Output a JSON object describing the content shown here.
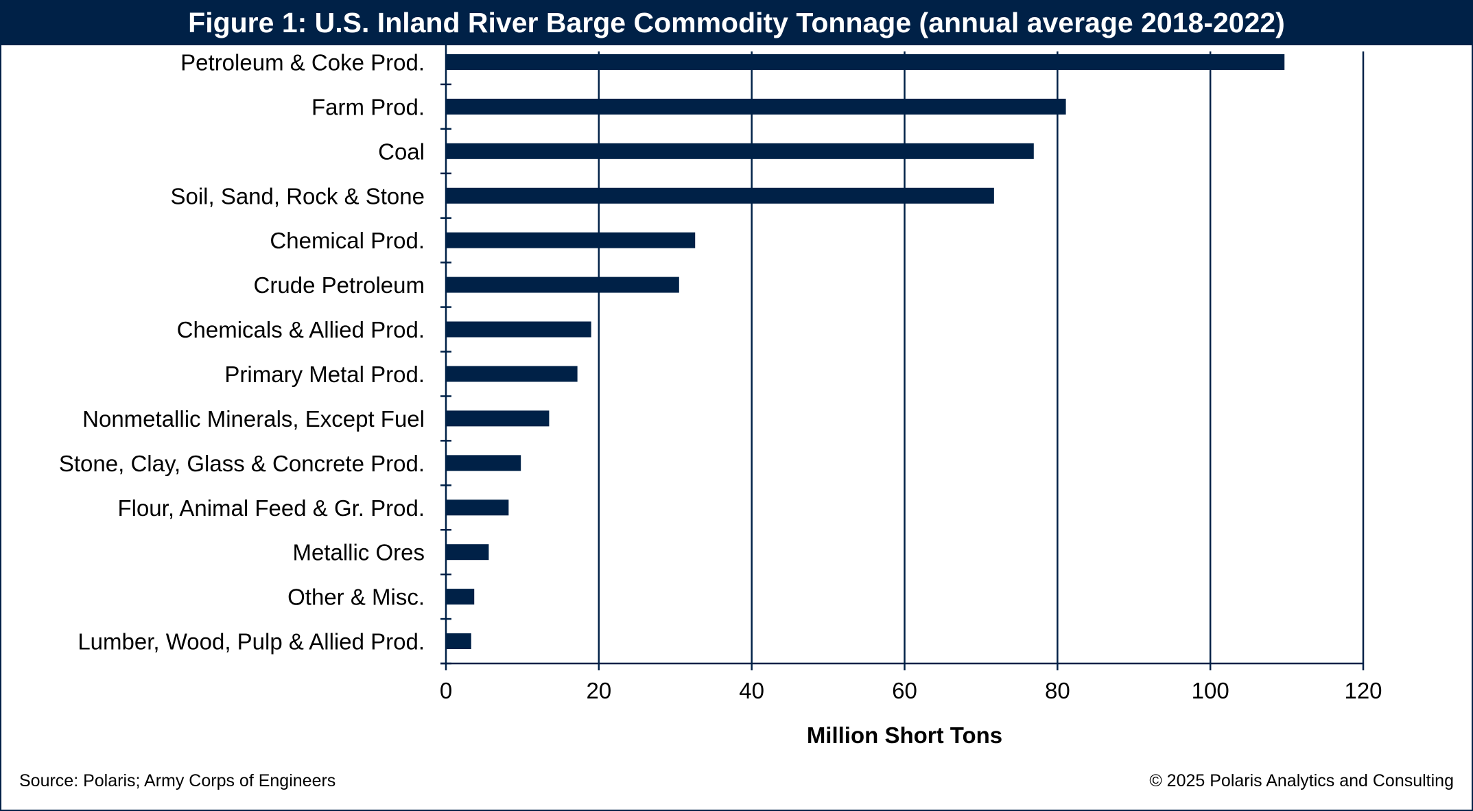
{
  "chart_data": {
    "type": "bar",
    "orientation": "horizontal",
    "title": "Figure 1: U.S. Inland River Barge Commodity Tonnage (annual average 2018-2022)",
    "xlabel": "Million Short Tons",
    "ylabel": "",
    "xlim": [
      0,
      120
    ],
    "xticks": [
      "0",
      "20",
      "40",
      "60",
      "80",
      "100",
      "120"
    ],
    "grid": true,
    "categories": [
      "Petroleum & Coke Prod.",
      "Farm Prod.",
      "Coal",
      "Soil, Sand, Rock & Stone",
      "Chemical Prod.",
      "Crude Petroleum",
      "Chemicals & Allied Prod.",
      "Primary Metal Prod.",
      "Nonmetallic Minerals, Except Fuel",
      "Stone, Clay, Glass & Concrete Prod.",
      "Flour, Animal Feed & Gr. Prod.",
      "Metallic Ores",
      "Other & Misc.",
      "Lumber, Wood, Pulp & Allied Prod."
    ],
    "values": [
      109.7,
      81.1,
      76.9,
      71.7,
      32.6,
      30.5,
      19.0,
      17.2,
      13.5,
      9.8,
      8.2,
      5.6,
      3.7,
      3.3
    ],
    "bar_color": "#002147"
  },
  "footer": {
    "source": "Source: Polaris; Army Corps of Engineers",
    "copyright": "© 2025 Polaris Analytics and Consulting"
  }
}
